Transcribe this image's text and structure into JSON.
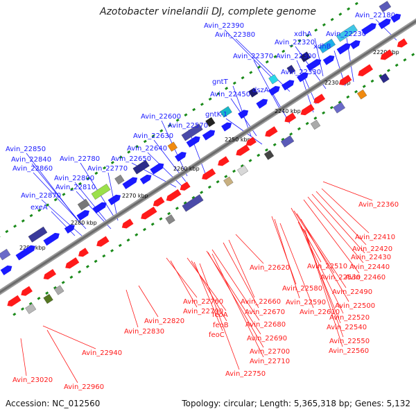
{
  "title": "Azotobacter vinelandii DJ, complete genome",
  "accession": "Accession: NC_012560",
  "topology": "Topology: circular; Length: 5,365,318 bp; Genes: 5,132",
  "colors": {
    "forward": "#1a1aff",
    "reverse": "#ff1a1a",
    "backbone": "#6b6b6b",
    "tick": "#1a8a1a"
  },
  "ticks": [
    "2220 kbp",
    "2230 kbp",
    "2240 kbp",
    "2250 kbp",
    "2260 kbp",
    "2270 kbp",
    "2280 kbp",
    "2290 kbp"
  ],
  "forward_labels": [
    "Avin_22180",
    "Avin_22390",
    "Avin_22380",
    "Avin_22320",
    "Avin_22230",
    "xdhA",
    "xdhB",
    "Avin_22370",
    "Avin_22300",
    "Avin_22330",
    "gntT",
    "Avin_22450",
    "dszA",
    "gntK-1",
    "Avin_22600",
    "Avin_22570",
    "Avin_22630",
    "Avin_22640",
    "Avin_22650",
    "Avin_22850",
    "Avin_22840",
    "Avin_22860",
    "Avin_22780",
    "Avin_22770",
    "Avin_22800",
    "Avin_22810",
    "Avin_22870",
    "exeA"
  ],
  "reverse_labels": [
    "Avin_22360",
    "Avin_22410",
    "Avin_22420",
    "Avin_22430",
    "Avin_22440",
    "Avin_22460",
    "Avin_22620",
    "Avin_22510",
    "Avin_22530",
    "Avin_22490",
    "Avin_22580",
    "Avin_22590",
    "Avin_22500",
    "Avin_22660",
    "Avin_22610",
    "Avin_22670",
    "Avin_22520",
    "Avin_22760",
    "Avin_22540",
    "Avin_22790",
    "Avin_22680",
    "feoA",
    "Avin_22820",
    "feoB",
    "Avin_22550",
    "feoC",
    "Avin_22690",
    "Avin_22560",
    "Avin_22830",
    "Avin_22700",
    "Avin_22710",
    "Avin_22750",
    "Avin_22940",
    "Avin_23020",
    "Avin_22960"
  ]
}
